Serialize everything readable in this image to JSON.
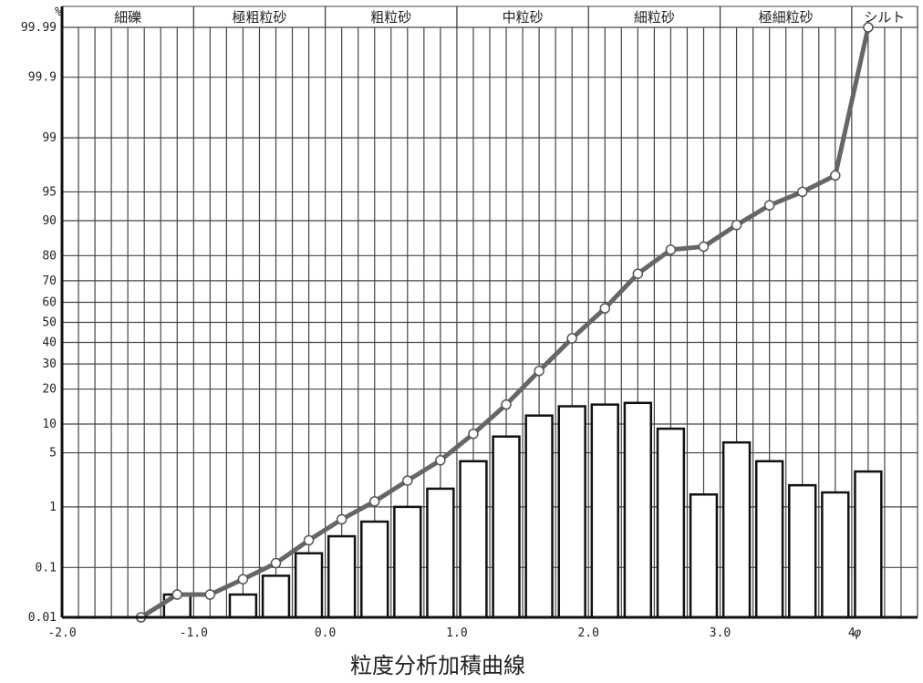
{
  "chart_data": {
    "type": "bar+line",
    "title": "粒度分析加積曲線",
    "y_unit_label": "%",
    "x_unit_label": "φ",
    "x_axis": {
      "range": [
        -2.0,
        4.5
      ],
      "tick_labels": [
        {
          "value": -2.0,
          "label": "-2.0"
        },
        {
          "value": -1.0,
          "label": "-1.0"
        },
        {
          "value": 0.0,
          "label": "0.0"
        },
        {
          "value": 1.0,
          "label": "1.0"
        },
        {
          "value": 2.0,
          "label": "2.0"
        },
        {
          "value": 3.0,
          "label": "3.0"
        },
        {
          "value": 4.0,
          "label": "4"
        }
      ]
    },
    "y_axis": {
      "scale": "probability",
      "range": [
        0.01,
        99.99
      ],
      "tick_labels": [
        "0.01",
        "0.1",
        "1",
        "5",
        "10",
        "20",
        "30",
        "40",
        "50",
        "60",
        "70",
        "80",
        "90",
        "95",
        "99",
        "99.9",
        "99.99"
      ]
    },
    "classes": [
      {
        "label": "細礫",
        "from": -2.0,
        "to": -1.0
      },
      {
        "label": "極粗粒砂",
        "from": -1.0,
        "to": 0.0
      },
      {
        "label": "粗粒砂",
        "from": 0.0,
        "to": 1.0
      },
      {
        "label": "中粒砂",
        "from": 1.0,
        "to": 2.0
      },
      {
        "label": "細粒砂",
        "from": 2.0,
        "to": 3.0
      },
      {
        "label": "極細粒砂",
        "from": 3.0,
        "to": 4.0
      },
      {
        "label": "シルト",
        "from": 4.0,
        "to": 4.5
      }
    ],
    "bars": {
      "width": 0.2,
      "x": [
        -1.125,
        -0.625,
        -0.375,
        -0.125,
        0.125,
        0.375,
        0.625,
        0.875,
        1.125,
        1.375,
        1.625,
        1.875,
        2.125,
        2.375,
        2.625,
        2.875,
        3.125,
        3.375,
        3.625,
        3.875,
        4.125
      ],
      "values": [
        0.03,
        0.03,
        0.07,
        0.18,
        0.35,
        0.6,
        1.0,
        1.8,
        4.0,
        7.5,
        12.0,
        14.5,
        15.0,
        15.5,
        9.0,
        1.5,
        6.5,
        4.0,
        2.0,
        1.6,
        3.0
      ]
    },
    "cumulative_curve": {
      "x": [
        -1.4,
        -1.125,
        -0.875,
        -0.625,
        -0.375,
        -0.125,
        0.125,
        0.375,
        0.625,
        0.875,
        1.125,
        1.375,
        1.625,
        1.875,
        2.125,
        2.375,
        2.625,
        2.875,
        3.125,
        3.375,
        3.625,
        3.875,
        4.125
      ],
      "values": [
        0.01,
        0.03,
        0.03,
        0.06,
        0.12,
        0.3,
        0.65,
        1.2,
        2.3,
        4.1,
        8.0,
        15.0,
        27.0,
        42.0,
        57.0,
        73.0,
        82.0,
        83.0,
        89.0,
        93.0,
        95.0,
        96.8,
        99.99
      ]
    }
  }
}
